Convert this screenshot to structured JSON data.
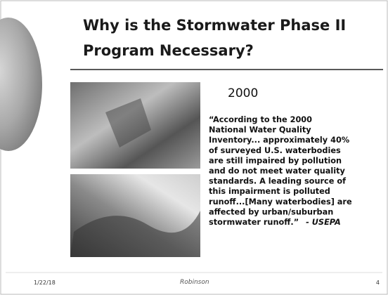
{
  "header": {
    "title_lines": [
      "Why is the Stormwater Phase II",
      "Program Necessary?"
    ]
  },
  "content": {
    "subtitle": "2000",
    "quote_lines": [
      "“According to the 2000",
      "National Water Quality",
      "Inventory... approximately 40%",
      "of surveyed U.S. waterbodies",
      "are still impaired by pollution",
      "and do not meet water quality",
      "standards.  A leading source of",
      "this impairment is polluted",
      "runoff...[Many waterbodies] are",
      "affected by urban/suburban",
      "stormwater runoff.”"
    ],
    "attribution": "- USEPA"
  },
  "footer": {
    "date": "1/22/18",
    "logo": "Robinson",
    "page_number": "4"
  }
}
